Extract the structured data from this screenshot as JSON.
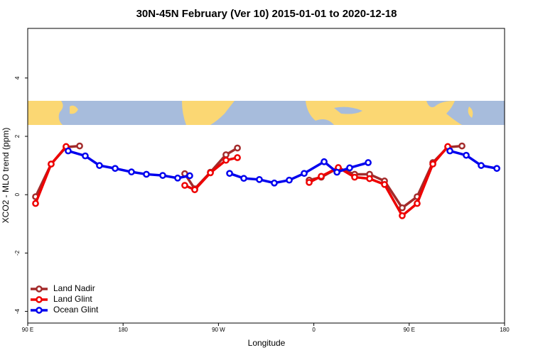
{
  "chart_data": {
    "type": "line",
    "title": "30N-45N February (Ver 10)   2015-01-01 to 2020-12-18",
    "x_label": "Longitude",
    "y_label": "XCO2 - MLO trend (ppm)",
    "xlim": [
      90,
      540
    ],
    "ylim": [
      -4.4,
      5.7
    ],
    "xticks": [
      {
        "value": 90,
        "label": "90 E"
      },
      {
        "value": 180,
        "label": "180"
      },
      {
        "value": 270,
        "label": "90 W"
      },
      {
        "value": 360,
        "label": "0"
      },
      {
        "value": 450,
        "label": "90 E"
      },
      {
        "value": 540,
        "label": "180"
      }
    ],
    "yticks": [
      -4,
      -2,
      0,
      2,
      4
    ],
    "legend": "bottom-left",
    "series": [
      {
        "name": "Land Nadir",
        "color": "#a32b2b",
        "x": [
          97.4,
          112.1,
          126.2,
          139.0,
          null,
          238.2,
          247.6,
          262.4,
          277.1,
          287.9,
          null,
          355.6,
          367.0,
          383.1,
          398.5,
          412.6,
          426.7,
          443.4,
          457.5,
          472.3,
          486.4,
          499.8
        ],
        "values": [
          -0.07,
          1.05,
          1.63,
          1.67,
          null,
          0.72,
          0.2,
          0.77,
          1.37,
          1.6,
          null,
          0.5,
          0.6,
          0.92,
          0.7,
          0.7,
          0.47,
          -0.45,
          -0.07,
          1.1,
          1.63,
          1.67
        ]
      },
      {
        "name": "Land Glint",
        "color": "#ee0000",
        "x": [
          97.4,
          112.1,
          126.2,
          null,
          238.2,
          247.6,
          262.4,
          277.1,
          287.9,
          null,
          355.6,
          367.0,
          383.1,
          398.5,
          412.6,
          426.7,
          443.4,
          457.5,
          472.3,
          486.4
        ],
        "values": [
          -0.3,
          1.05,
          1.65,
          null,
          0.32,
          0.17,
          0.75,
          1.18,
          1.27,
          null,
          0.42,
          0.63,
          0.93,
          0.6,
          0.55,
          0.35,
          -0.72,
          -0.3,
          1.05,
          1.65
        ]
      },
      {
        "name": "Ocean Glint",
        "color": "#0000ee",
        "x": [
          128.2,
          144.3,
          157.7,
          172.5,
          187.9,
          202.0,
          217.4,
          231.5,
          242.9,
          null,
          280.5,
          293.9,
          308.6,
          322.7,
          336.8,
          350.9,
          369.7,
          381.8,
          393.8,
          411.3,
          null,
          488.4,
          503.8,
          517.9,
          532.7
        ],
        "values": [
          1.5,
          1.33,
          1.0,
          0.9,
          0.78,
          0.7,
          0.66,
          0.57,
          0.65,
          null,
          0.73,
          0.56,
          0.52,
          0.4,
          0.5,
          0.73,
          1.13,
          0.77,
          0.92,
          1.1,
          null,
          1.5,
          1.35,
          1.0,
          0.9
        ]
      }
    ]
  }
}
